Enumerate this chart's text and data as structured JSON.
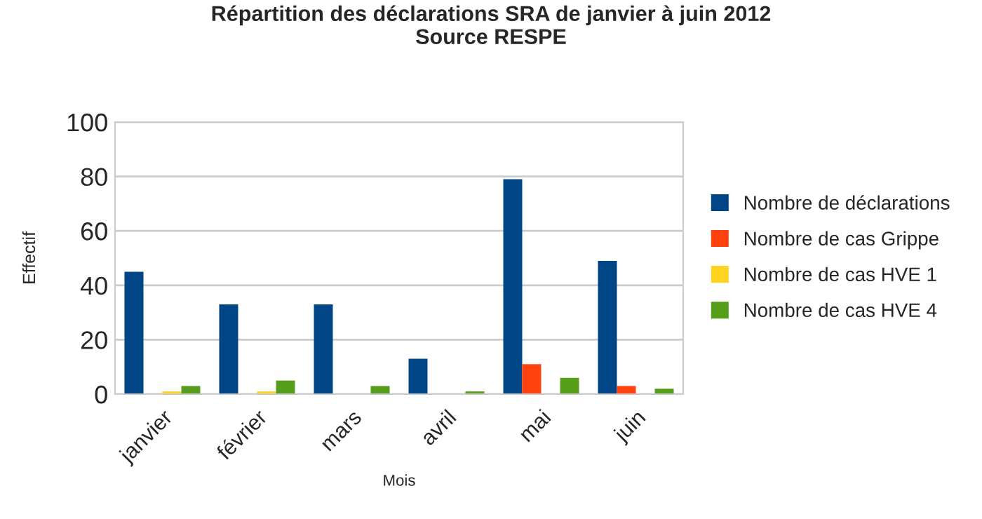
{
  "chart_data": {
    "type": "bar",
    "title": "Répartition des déclarations SRA de janvier à juin 2012\nSource RESPE",
    "xlabel": "Mois",
    "ylabel": "Effectif",
    "categories": [
      "janvier",
      "février",
      "mars",
      "avril",
      "mai",
      "juin"
    ],
    "series": [
      {
        "name": "Nombre de déclarations",
        "color": "#004586",
        "values": [
          45,
          33,
          33,
          13,
          79,
          49
        ]
      },
      {
        "name": "Nombre de cas Grippe",
        "color": "#ff420e",
        "values": [
          null,
          null,
          null,
          null,
          11,
          3
        ]
      },
      {
        "name": "Nombre de cas HVE 1",
        "color": "#ffd320",
        "values": [
          1,
          1,
          null,
          null,
          null,
          null
        ]
      },
      {
        "name": "Nombre de cas HVE 4",
        "color": "#579d1c",
        "values": [
          3,
          5,
          3,
          1,
          6,
          2
        ]
      }
    ],
    "ylim": [
      0,
      100
    ],
    "yticks": [
      0,
      20,
      40,
      60,
      80,
      100
    ],
    "grid": "y",
    "legend": "right"
  }
}
